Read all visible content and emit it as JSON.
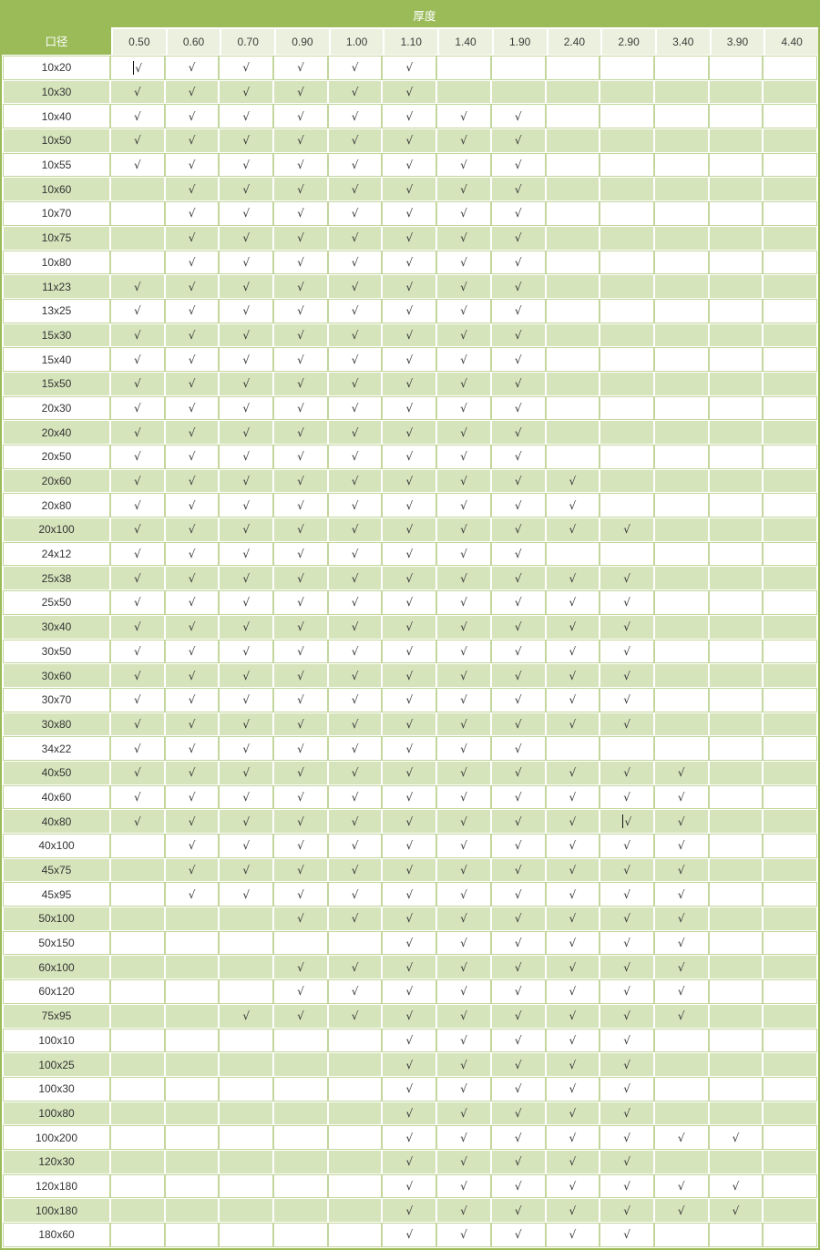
{
  "table": {
    "thickness_header": "厚度",
    "size_header": "口径",
    "check_symbol": "√",
    "columns": [
      "0.50",
      "0.60",
      "0.70",
      "0.90",
      "1.00",
      "1.10",
      "1.40",
      "1.90",
      "2.40",
      "2.90",
      "3.40",
      "3.90",
      "4.40"
    ],
    "rows": [
      {
        "size": "10x20",
        "cells": [
          1,
          1,
          1,
          1,
          1,
          1,
          0,
          0,
          0,
          0,
          0,
          0,
          0
        ]
      },
      {
        "size": "10x30",
        "cells": [
          1,
          1,
          1,
          1,
          1,
          1,
          0,
          0,
          0,
          0,
          0,
          0,
          0
        ]
      },
      {
        "size": "10x40",
        "cells": [
          1,
          1,
          1,
          1,
          1,
          1,
          1,
          1,
          0,
          0,
          0,
          0,
          0
        ]
      },
      {
        "size": "10x50",
        "cells": [
          1,
          1,
          1,
          1,
          1,
          1,
          1,
          1,
          0,
          0,
          0,
          0,
          0
        ]
      },
      {
        "size": "10x55",
        "cells": [
          1,
          1,
          1,
          1,
          1,
          1,
          1,
          1,
          0,
          0,
          0,
          0,
          0
        ]
      },
      {
        "size": "10x60",
        "cells": [
          0,
          1,
          1,
          1,
          1,
          1,
          1,
          1,
          0,
          0,
          0,
          0,
          0
        ]
      },
      {
        "size": "10x70",
        "cells": [
          0,
          1,
          1,
          1,
          1,
          1,
          1,
          1,
          0,
          0,
          0,
          0,
          0
        ]
      },
      {
        "size": "10x75",
        "cells": [
          0,
          1,
          1,
          1,
          1,
          1,
          1,
          1,
          0,
          0,
          0,
          0,
          0
        ]
      },
      {
        "size": "10x80",
        "cells": [
          0,
          1,
          1,
          1,
          1,
          1,
          1,
          1,
          0,
          0,
          0,
          0,
          0
        ]
      },
      {
        "size": "11x23",
        "cells": [
          1,
          1,
          1,
          1,
          1,
          1,
          1,
          1,
          0,
          0,
          0,
          0,
          0
        ]
      },
      {
        "size": "13x25",
        "cells": [
          1,
          1,
          1,
          1,
          1,
          1,
          1,
          1,
          0,
          0,
          0,
          0,
          0
        ]
      },
      {
        "size": "15x30",
        "cells": [
          1,
          1,
          1,
          1,
          1,
          1,
          1,
          1,
          0,
          0,
          0,
          0,
          0
        ]
      },
      {
        "size": "15x40",
        "cells": [
          1,
          1,
          1,
          1,
          1,
          1,
          1,
          1,
          0,
          0,
          0,
          0,
          0
        ]
      },
      {
        "size": "15x50",
        "cells": [
          1,
          1,
          1,
          1,
          1,
          1,
          1,
          1,
          0,
          0,
          0,
          0,
          0
        ]
      },
      {
        "size": "20x30",
        "cells": [
          1,
          1,
          1,
          1,
          1,
          1,
          1,
          1,
          0,
          0,
          0,
          0,
          0
        ]
      },
      {
        "size": "20x40",
        "cells": [
          1,
          1,
          1,
          1,
          1,
          1,
          1,
          1,
          0,
          0,
          0,
          0,
          0
        ]
      },
      {
        "size": "20x50",
        "cells": [
          1,
          1,
          1,
          1,
          1,
          1,
          1,
          1,
          0,
          0,
          0,
          0,
          0
        ]
      },
      {
        "size": "20x60",
        "cells": [
          1,
          1,
          1,
          1,
          1,
          1,
          1,
          1,
          1,
          0,
          0,
          0,
          0
        ]
      },
      {
        "size": "20x80",
        "cells": [
          1,
          1,
          1,
          1,
          1,
          1,
          1,
          1,
          1,
          0,
          0,
          0,
          0
        ]
      },
      {
        "size": "20x100",
        "cells": [
          1,
          1,
          1,
          1,
          1,
          1,
          1,
          1,
          1,
          1,
          0,
          0,
          0
        ]
      },
      {
        "size": "24x12",
        "cells": [
          1,
          1,
          1,
          1,
          1,
          1,
          1,
          1,
          0,
          0,
          0,
          0,
          0
        ]
      },
      {
        "size": "25x38",
        "cells": [
          1,
          1,
          1,
          1,
          1,
          1,
          1,
          1,
          1,
          1,
          0,
          0,
          0
        ]
      },
      {
        "size": "25x50",
        "cells": [
          1,
          1,
          1,
          1,
          1,
          1,
          1,
          1,
          1,
          1,
          0,
          0,
          0
        ]
      },
      {
        "size": "30x40",
        "cells": [
          1,
          1,
          1,
          1,
          1,
          1,
          1,
          1,
          1,
          1,
          0,
          0,
          0
        ]
      },
      {
        "size": "30x50",
        "cells": [
          1,
          1,
          1,
          1,
          1,
          1,
          1,
          1,
          1,
          1,
          0,
          0,
          0
        ]
      },
      {
        "size": "30x60",
        "cells": [
          1,
          1,
          1,
          1,
          1,
          1,
          1,
          1,
          1,
          1,
          0,
          0,
          0
        ]
      },
      {
        "size": "30x70",
        "cells": [
          1,
          1,
          1,
          1,
          1,
          1,
          1,
          1,
          1,
          1,
          0,
          0,
          0
        ]
      },
      {
        "size": "30x80",
        "cells": [
          1,
          1,
          1,
          1,
          1,
          1,
          1,
          1,
          1,
          1,
          0,
          0,
          0
        ]
      },
      {
        "size": "34x22",
        "cells": [
          1,
          1,
          1,
          1,
          1,
          1,
          1,
          1,
          0,
          0,
          0,
          0,
          0
        ]
      },
      {
        "size": "40x50",
        "cells": [
          1,
          1,
          1,
          1,
          1,
          1,
          1,
          1,
          1,
          1,
          1,
          0,
          0
        ]
      },
      {
        "size": "40x60",
        "cells": [
          1,
          1,
          1,
          1,
          1,
          1,
          1,
          1,
          1,
          1,
          1,
          0,
          0
        ]
      },
      {
        "size": "40x80",
        "cells": [
          1,
          1,
          1,
          1,
          1,
          1,
          1,
          1,
          1,
          1,
          1,
          0,
          0
        ]
      },
      {
        "size": "40x100",
        "cells": [
          0,
          1,
          1,
          1,
          1,
          1,
          1,
          1,
          1,
          1,
          1,
          0,
          0
        ]
      },
      {
        "size": "45x75",
        "cells": [
          0,
          1,
          1,
          1,
          1,
          1,
          1,
          1,
          1,
          1,
          1,
          0,
          0
        ]
      },
      {
        "size": "45x95",
        "cells": [
          0,
          1,
          1,
          1,
          1,
          1,
          1,
          1,
          1,
          1,
          1,
          0,
          0
        ]
      },
      {
        "size": "50x100",
        "cells": [
          0,
          0,
          0,
          1,
          1,
          1,
          1,
          1,
          1,
          1,
          1,
          0,
          0
        ]
      },
      {
        "size": "50x150",
        "cells": [
          0,
          0,
          0,
          0,
          0,
          1,
          1,
          1,
          1,
          1,
          1,
          0,
          0
        ]
      },
      {
        "size": "60x100",
        "cells": [
          0,
          0,
          0,
          1,
          1,
          1,
          1,
          1,
          1,
          1,
          1,
          0,
          0
        ]
      },
      {
        "size": "60x120",
        "cells": [
          0,
          0,
          0,
          1,
          1,
          1,
          1,
          1,
          1,
          1,
          1,
          0,
          0
        ]
      },
      {
        "size": "75x95",
        "cells": [
          0,
          0,
          1,
          1,
          1,
          1,
          1,
          1,
          1,
          1,
          1,
          0,
          0
        ]
      },
      {
        "size": "100x10",
        "cells": [
          0,
          0,
          0,
          0,
          0,
          1,
          1,
          1,
          1,
          1,
          0,
          0,
          0
        ]
      },
      {
        "size": "100x25",
        "cells": [
          0,
          0,
          0,
          0,
          0,
          1,
          1,
          1,
          1,
          1,
          0,
          0,
          0
        ]
      },
      {
        "size": "100x30",
        "cells": [
          0,
          0,
          0,
          0,
          0,
          1,
          1,
          1,
          1,
          1,
          0,
          0,
          0
        ]
      },
      {
        "size": "100x80",
        "cells": [
          0,
          0,
          0,
          0,
          0,
          1,
          1,
          1,
          1,
          1,
          0,
          0,
          0
        ]
      },
      {
        "size": "100x200",
        "cells": [
          0,
          0,
          0,
          0,
          0,
          1,
          1,
          1,
          1,
          1,
          1,
          1,
          0
        ]
      },
      {
        "size": "120x30",
        "cells": [
          0,
          0,
          0,
          0,
          0,
          1,
          1,
          1,
          1,
          1,
          0,
          0,
          0
        ]
      },
      {
        "size": "120x180",
        "cells": [
          0,
          0,
          0,
          0,
          0,
          1,
          1,
          1,
          1,
          1,
          1,
          1,
          0
        ]
      },
      {
        "size": "100x180",
        "cells": [
          0,
          0,
          0,
          0,
          0,
          1,
          1,
          1,
          1,
          1,
          1,
          1,
          0
        ]
      },
      {
        "size": "180x60",
        "cells": [
          0,
          0,
          0,
          0,
          0,
          1,
          1,
          1,
          1,
          1,
          0,
          0,
          0
        ]
      }
    ],
    "carets": [
      {
        "row": 0,
        "col": 0
      },
      {
        "row": 31,
        "col": 9
      }
    ]
  },
  "colors": {
    "header_green": "#9bbb59",
    "column_header_bg": "#ebf1de",
    "band_green": "#d6e4bc",
    "gridline_green": "#c3d69b",
    "header_text": "#ffffff",
    "cell_text": "#333333"
  }
}
